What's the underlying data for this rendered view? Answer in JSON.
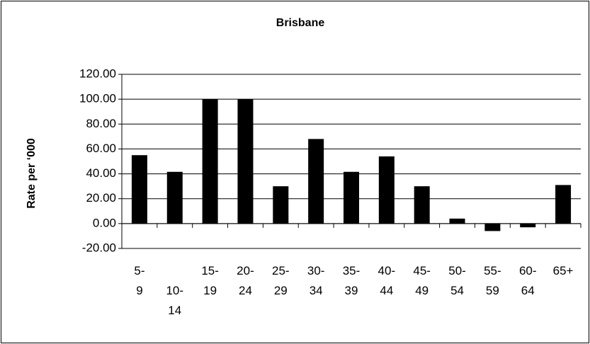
{
  "chart_data": {
    "type": "bar",
    "title": "Brisbane",
    "y_label": "Rate per ‘000",
    "categories": [
      "5-9",
      "10-14",
      "15-19",
      "20-24",
      "25-29",
      "30-34",
      "35-39",
      "40-44",
      "45-49",
      "50-54",
      "55-59",
      "60-64",
      "65+"
    ],
    "values": [
      55,
      41.6,
      100,
      100,
      30,
      68,
      41.6,
      54,
      30,
      4,
      -6,
      -3,
      31
    ],
    "color": "#000000",
    "ylim": [
      -20,
      120
    ],
    "yticks": [
      {
        "value": -20,
        "label": "-20.00"
      },
      {
        "value": 0,
        "label": "0.00"
      },
      {
        "value": 20,
        "label": "20.00"
      },
      {
        "value": 40,
        "label": "40.00"
      },
      {
        "value": 60,
        "label": "60.00"
      },
      {
        "value": 80,
        "label": "80.00"
      },
      {
        "value": 100,
        "label": "100.00"
      },
      {
        "value": 120,
        "label": "120.00"
      }
    ],
    "grid": true
  }
}
